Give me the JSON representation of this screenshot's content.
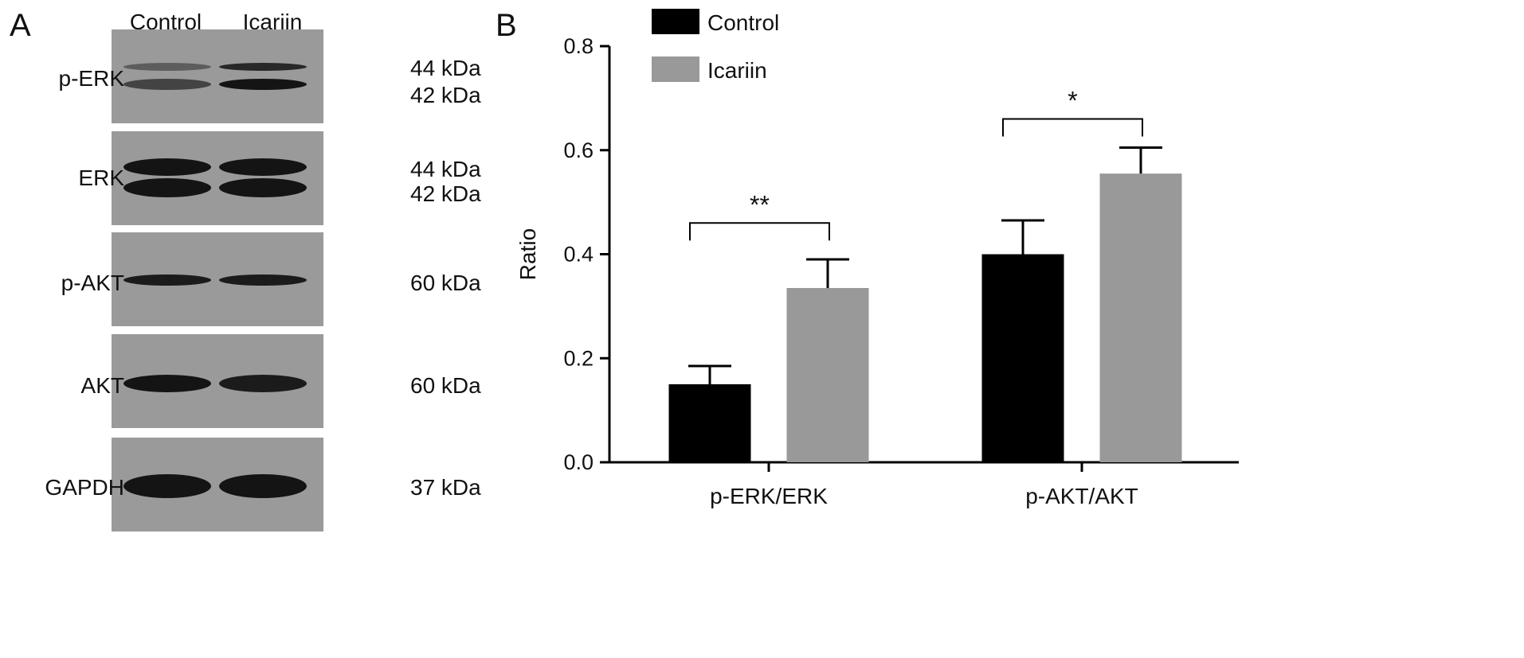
{
  "panel_a": {
    "letter": "A",
    "lanes": [
      "Control",
      "Icariin"
    ],
    "blots": [
      {
        "label": "p-ERK",
        "markers": [
          "44 kDa",
          "42 kDa"
        ]
      },
      {
        "label": "ERK",
        "markers": [
          "44 kDa",
          "42 kDa"
        ]
      },
      {
        "label": "p-AKT",
        "markers": [
          "60 kDa"
        ]
      },
      {
        "label": "AKT",
        "markers": [
          "60 kDa"
        ]
      },
      {
        "label": "GAPDH",
        "markers": [
          "37 kDa"
        ]
      }
    ],
    "colors": {
      "membrane": "#9a9a9a",
      "band": "#141414"
    }
  },
  "panel_b": {
    "letter": "B"
  },
  "chart_data": {
    "type": "bar",
    "title": "",
    "xlabel": "",
    "ylabel": "Ratio",
    "ylim": [
      0,
      0.8
    ],
    "yticks": [
      0.0,
      0.2,
      0.4,
      0.6,
      0.8
    ],
    "ytick_labels": [
      "0.0",
      "0.2",
      "0.4",
      "0.6",
      "0.8"
    ],
    "categories": [
      "p-ERK/ERK",
      "p-AKT/AKT"
    ],
    "series": [
      {
        "name": "Control",
        "color": "#000000",
        "values": [
          0.15,
          0.4
        ],
        "errors": [
          0.035,
          0.065
        ]
      },
      {
        "name": "Icariin",
        "color": "#999999",
        "values": [
          0.335,
          0.555
        ],
        "errors": [
          0.055,
          0.05
        ]
      }
    ],
    "significance": [
      {
        "category": "p-ERK/ERK",
        "label": "**",
        "y": 0.46
      },
      {
        "category": "p-AKT/AKT",
        "label": "*",
        "y": 0.66
      }
    ],
    "legend": {
      "position": "top-left"
    },
    "grid": false
  }
}
